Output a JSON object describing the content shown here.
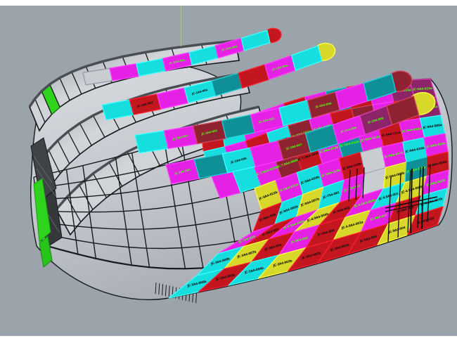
{
  "viewport": {
    "background": "#9ba3ab",
    "frame_color": "#ffffff",
    "axis_line_color": "#8ce01c",
    "wireframe_color": "#17191c",
    "hull_gray_light": "#d8dbdf",
    "hull_gray_dark": "#a6abb3"
  },
  "palette": {
    "cy": "#17dede",
    "mg": "#e621e6",
    "rd": "#c3161f",
    "dr": "#8e2230",
    "tl": "#0f8f96",
    "yl": "#d8d82b",
    "gn": "#2ed31c",
    "pu": "#8e2468",
    "gy": "#c9ccd1",
    "hull": "#c6cacf"
  },
  "strokes": {
    "cy": "#3cffff",
    "mg": "#ff3cff",
    "rd": "#ff1e30",
    "dr": "#d2445c",
    "tl": "#22d2d8",
    "yl": "#ffff45",
    "gn": "#46ff30",
    "pu": "#e040c0",
    "gy": "#969ba1",
    "hull": "#9aa0a6"
  },
  "label_colors": {
    "on_dark": "#49ff12",
    "on_light": "#101010"
  },
  "hull": {
    "grid": {
      "rows": [
        {
          "t0": -0.18,
          "cells": [
            {
              "c": "rd",
              "t": ""
            },
            {
              "c": "cy",
              "t": ""
            },
            {
              "c": "mg",
              "t": "JC-1A4-030a"
            },
            {
              "c": "mg",
              "t": "JC-9A4-030a"
            },
            {
              "c": "rd",
              "t": "JC-9A4-029a"
            },
            {
              "c": "mg",
              "t": "JC-9A4-028a"
            },
            {
              "c": "tl",
              "t": "JC-9A4-027a"
            },
            {
              "c": "rd",
              "t": "JC-9A4-026a"
            },
            {
              "c": "mg",
              "t": "JC-9A4-025a"
            },
            {
              "c": "pu",
              "t": "JC-9A4-024a"
            },
            {
              "c": "pu",
              "t": "JC-9A4-023a"
            }
          ]
        },
        {
          "t0": -0.18,
          "cells": [
            {
              "c": "cy",
              "t": ""
            },
            {
              "c": "mg",
              "t": ""
            },
            {
              "c": "rd",
              "t": "JC-1A4-031b"
            },
            {
              "c": "cy",
              "t": "JC-9A4-022a"
            },
            {
              "c": "dr",
              "t": "JC-9A4-021a"
            },
            {
              "c": "mg",
              "t": "JC-9A4-020a"
            },
            {
              "c": "rd",
              "t": "JC-9A4-019a"
            },
            {
              "c": "dr",
              "t": "JC-9A4-018a"
            },
            {
              "c": "mg",
              "t": "JC-9A4-017a"
            },
            {
              "c": "rd",
              "t": "JC-9A4-016a"
            },
            {
              "c": "pu",
              "t": "JC-9A4-015a"
            }
          ]
        },
        {
          "t0": -0.18,
          "cells": [
            {
              "c": "mg",
              "t": ""
            },
            {
              "c": "cy",
              "t": ""
            },
            {
              "c": "mg",
              "t": "JC-7.9A4-005b"
            },
            {
              "c": "dr",
              "t": "JC-7.9A4-004b"
            },
            {
              "c": "rd",
              "t": "JC-7.9A4-003b"
            },
            {
              "c": "mg",
              "t": "JC-9A4-014a"
            },
            {
              "c": "tl",
              "t": "JC-9A4-013a"
            },
            {
              "c": "mg",
              "t": "JC-9A4-012a"
            },
            {
              "c": "rd",
              "t": "JC-9A4-011a"
            },
            {
              "c": "mg",
              "t": "JC-9A4-010a"
            },
            {
              "c": "cy",
              "t": "JC-9A4-009a"
            }
          ]
        },
        {
          "t0": 0,
          "cells": [
            {
              "c": "yl",
              "t": "JC-9A4-022b"
            },
            {
              "c": "mg",
              "t": "JC-9A4-021b"
            },
            {
              "c": "cy",
              "t": "JC-9A4-020b"
            },
            {
              "c": "mg",
              "t": "JC-9A4-019b"
            },
            {
              "c": "rd",
              "t": "JC-9A4-018b"
            },
            {
              "c": "gy",
              "t": ""
            },
            {
              "c": "mg",
              "t": "JC-9A4-017b"
            },
            {
              "c": "cy",
              "t": "JC-9A4-016b"
            },
            {
              "c": "mg",
              "t": "JC-9A4-015b"
            }
          ]
        },
        {
          "t0": 0,
          "cells": [
            {
              "c": "rd",
              "t": "JC-9A4-008"
            },
            {
              "c": "cy",
              "t": "JC-9A4-002b"
            },
            {
              "c": "yl",
              "t": "JC-9A4-007b"
            },
            {
              "c": "cy",
              "t": "JC-754-001"
            },
            {
              "c": "mg",
              "t": "JC-754-002"
            },
            {
              "c": "gy",
              "t": ""
            },
            {
              "c": "yl",
              "t": "JC-9A4-006b"
            },
            {
              "c": "tl",
              "t": "JC-9A4-005b"
            },
            {
              "c": "rd",
              "t": "JC-9A4-004b"
            }
          ]
        },
        {
          "t0": 0,
          "cells": [
            {
              "c": "mg",
              "t": "JC-754-003"
            },
            {
              "c": "rd",
              "t": "JC-9A4-001"
            },
            {
              "c": "mg",
              "t": "JC-4.9A4-005b"
            },
            {
              "c": "yl",
              "t": "JC-4.9A4-004b"
            },
            {
              "c": "rd",
              "t": "JC-9A4-002"
            },
            {
              "c": "mg",
              "t": "JC-4.9A4-003b"
            },
            {
              "c": "cy",
              "t": "JC-4.9A4-001"
            },
            {
              "c": "yl",
              "t": "JC-4.9A4-002b"
            },
            {
              "c": "mg",
              "t": "JC-9A4-003b"
            }
          ]
        },
        {
          "t0": 0,
          "cells": [
            {
              "c": "cy",
              "t": "JC-3A4-008b"
            },
            {
              "c": "yl",
              "t": "JC-3A4-007b"
            },
            {
              "c": "rd",
              "t": "JC-9A4-005"
            },
            {
              "c": "mg",
              "t": "JC-9A4-006"
            },
            {
              "c": "rd",
              "t": "JC-9A4-008"
            },
            {
              "c": "yl",
              "t": "JC-4.9A4-002a"
            },
            {
              "c": "mg",
              "t": "JC-9A4-007"
            },
            {
              "c": "rd",
              "t": "JC-9A4-009"
            },
            {
              "c": "cy",
              "t": "JC-4.9A4-001b"
            }
          ]
        },
        {
          "t0": 0,
          "cells": [
            {
              "c": "cy",
              "t": "JC-3A4-006b"
            },
            {
              "c": "rd",
              "t": "JC-3A4-005b"
            },
            {
              "c": "cy",
              "t": "JC-3A4-004b"
            },
            {
              "c": "yl",
              "t": "JC-3A4-003b"
            },
            {
              "c": "rd",
              "t": "JC-3A4-002b"
            },
            {
              "c": "rd",
              "t": "JC-3A4-001b"
            },
            {
              "c": "rd",
              "t": "JC-9A4-003"
            },
            {
              "c": "yl",
              "t": "JC-9A4-004"
            },
            {
              "c": "rd",
              "t": "JC-9A4-010"
            }
          ]
        }
      ]
    },
    "ribbons": [
      {
        "cap": "rd",
        "segs": [
          {
            "c": "gy"
          },
          {
            "c": "mg"
          },
          {
            "c": "cy"
          },
          {
            "c": "mg",
            "t": "JC-1A4-001"
          },
          {
            "c": "cy"
          },
          {
            "c": "mg",
            "t": "JC-1A4-002"
          },
          {
            "c": "cy"
          }
        ]
      },
      {
        "cap": "yl",
        "segs": [
          {
            "c": "cy"
          },
          {
            "c": "rd",
            "t": "JC-1A4-003"
          },
          {
            "c": "mg"
          },
          {
            "c": "cy",
            "t": "JC-1A4-004"
          },
          {
            "c": "tl"
          },
          {
            "c": "rd"
          },
          {
            "c": "mg",
            "t": "JC-1A4-005"
          },
          {
            "c": "cy"
          }
        ]
      },
      {
        "cap": "dr",
        "segs": [
          {
            "c": "cy"
          },
          {
            "c": "mg",
            "t": "JC-2A4-001"
          },
          {
            "c": "dr",
            "t": "JC-2A4-002"
          },
          {
            "c": "tl"
          },
          {
            "c": "mg",
            "t": "JC-2A4-003"
          },
          {
            "c": "cy"
          },
          {
            "c": "dr",
            "t": "JC-2A4-004"
          },
          {
            "c": "mg"
          },
          {
            "c": "tl"
          }
        ]
      },
      {
        "cap": "yl",
        "segs": [
          {
            "c": "mg",
            "t": "JC-2A4-005"
          },
          {
            "c": "tl"
          },
          {
            "c": "cy",
            "t": "JC-2A4-006"
          },
          {
            "c": "mg"
          },
          {
            "c": "dr",
            "t": "JC-2A4-007"
          },
          {
            "c": "tl"
          },
          {
            "c": "mg",
            "t": "JC-2A4-008"
          },
          {
            "c": "pu",
            "t": "JC-2A4-009"
          },
          {
            "c": "dr"
          }
        ]
      }
    ],
    "band_accents": {
      "band_a_green_segment": "gn"
    }
  }
}
